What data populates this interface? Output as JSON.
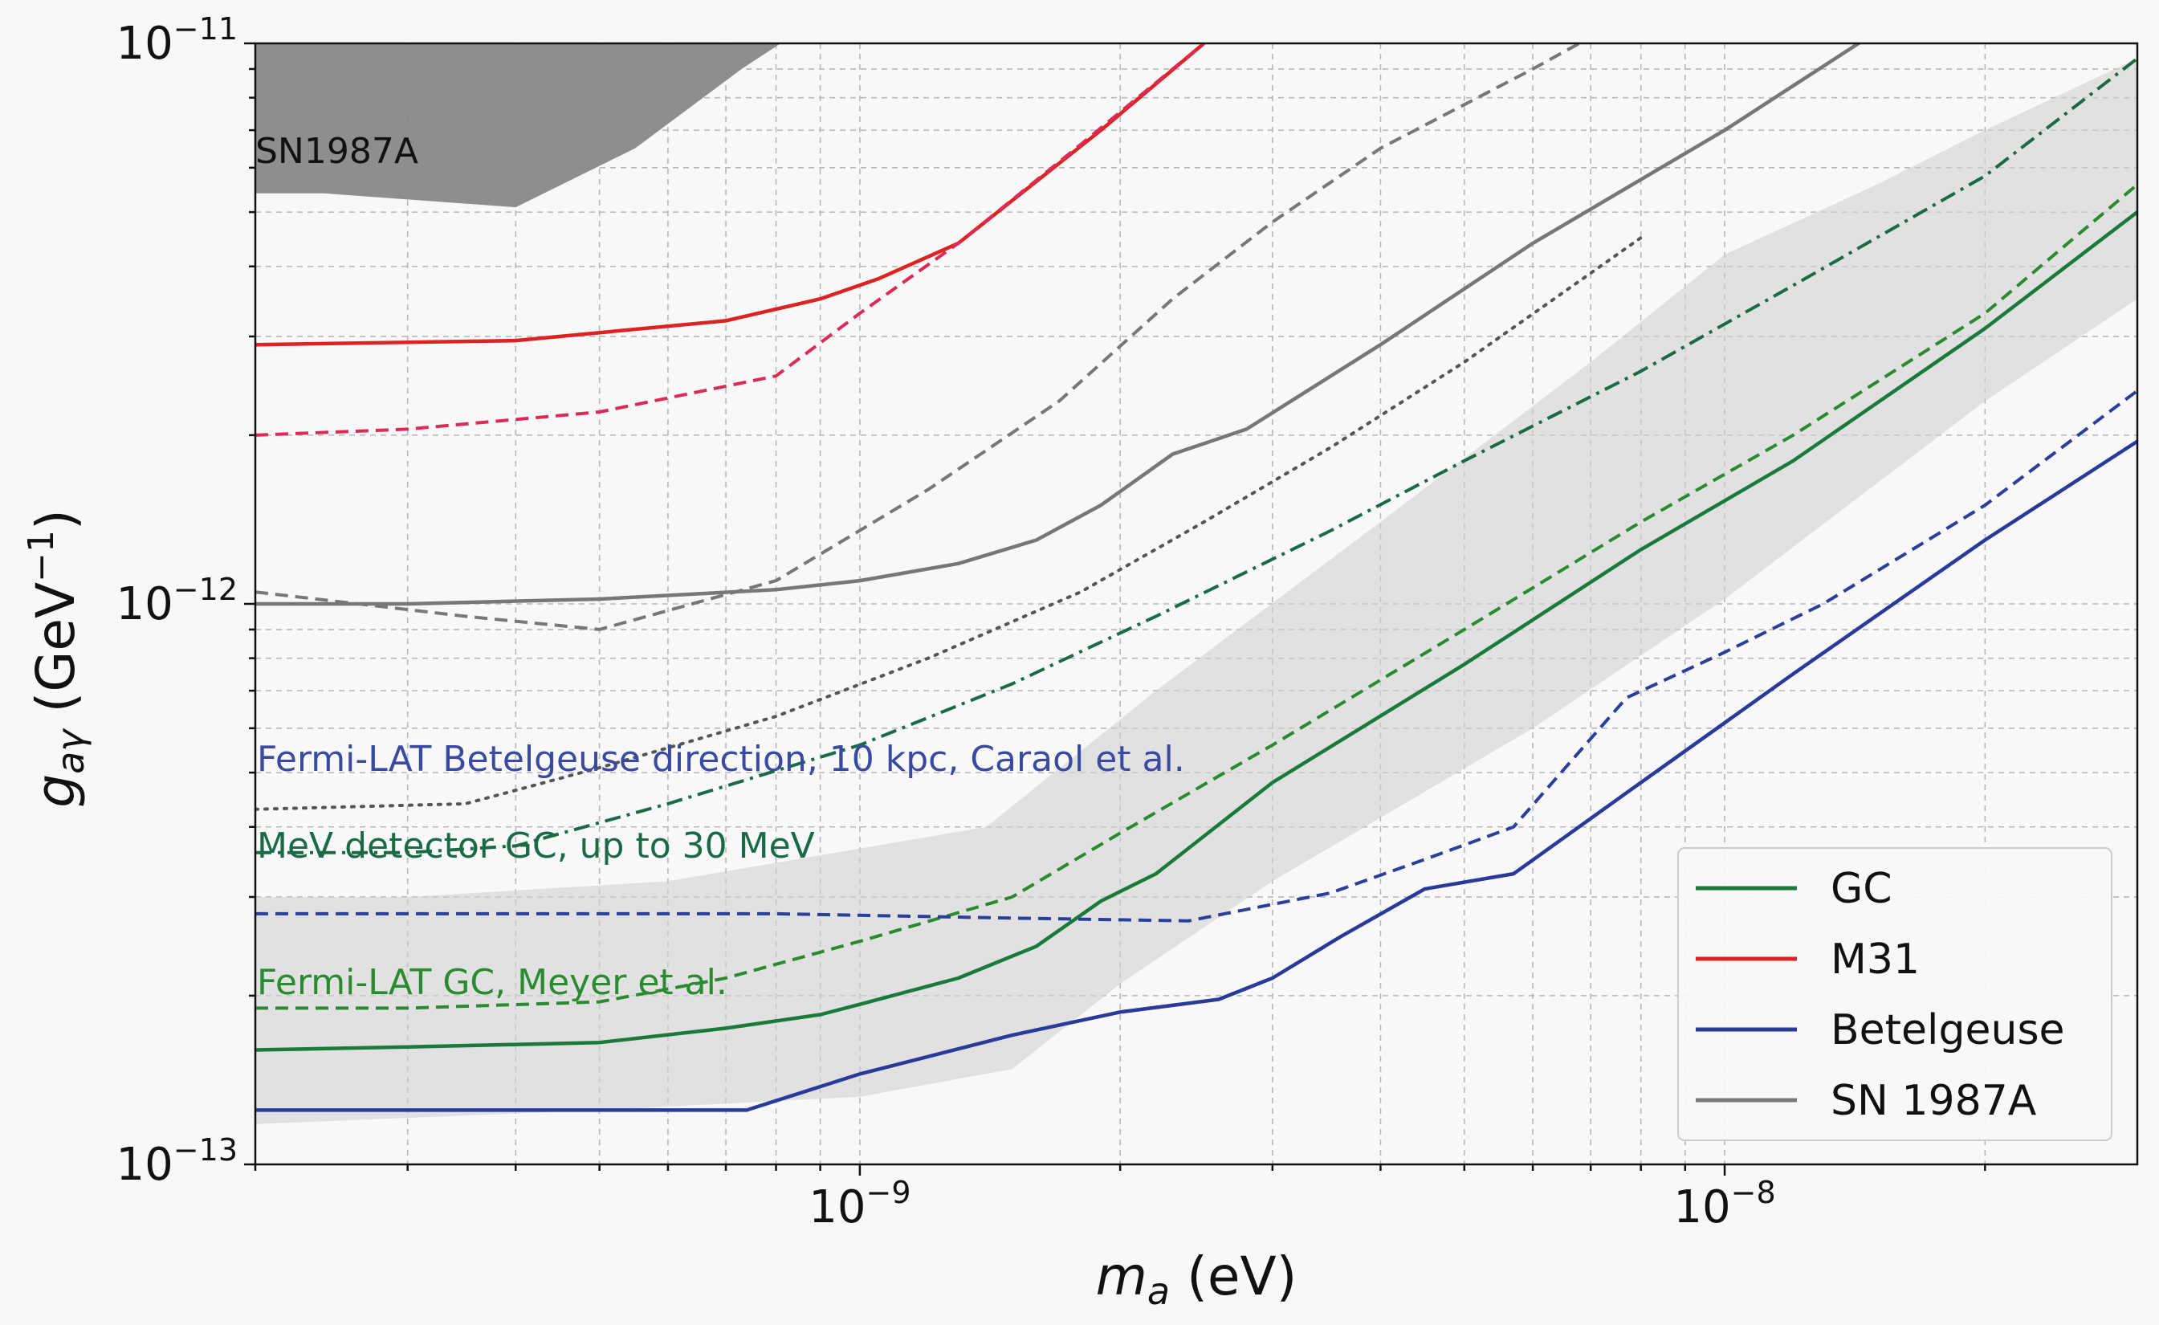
{
  "chart_data": {
    "type": "line",
    "x_scale": "log",
    "y_scale": "log",
    "xlim": [
      2e-10,
      3e-08
    ],
    "ylim": [
      1e-13,
      1e-11
    ],
    "xlabel_sym": "m",
    "xlabel_sub": "a",
    "xlabel_rest": " (eV)",
    "ylabel_sym": "g",
    "ylabel_sub": "aγ",
    "ylabel_rest": " (GeV",
    "ylabel_exp": "−1",
    "ylabel_close": ")",
    "x_ticks": [
      {
        "value": 1e-09,
        "base": "10",
        "exp": "−9"
      },
      {
        "value": 1e-08,
        "base": "10",
        "exp": "−8"
      }
    ],
    "y_ticks": [
      {
        "value": 1e-11,
        "base": "10",
        "exp": "−11"
      },
      {
        "value": 1e-12,
        "base": "10",
        "exp": "−12"
      },
      {
        "value": 1e-13,
        "base": "10",
        "exp": "−13"
      }
    ],
    "grid": true,
    "legend_position": "lower-right",
    "legend": [
      {
        "label": "GC",
        "color": "#1a7a3c"
      },
      {
        "label": "M31",
        "color": "#dd2222"
      },
      {
        "label": "Betelgeuse",
        "color": "#2b3a9a"
      },
      {
        "label": "SN 1987A",
        "color": "#777777"
      }
    ],
    "regions": [
      {
        "name": "SN1987A",
        "color": "#888888",
        "lower": [
          [
            2e-10,
            5.4e-12
          ],
          [
            2.4e-10,
            5.4e-12
          ],
          [
            4e-10,
            5.1e-12
          ],
          [
            5.5e-10,
            6.5e-12
          ],
          [
            7.3e-10,
            9e-12
          ],
          [
            8.5e-10,
            1.05e-11
          ]
        ]
      },
      {
        "name": "GC band",
        "color": "#d2d2d2",
        "upper": [
          [
            2e-10,
            3e-13
          ],
          [
            3e-10,
            3e-13
          ],
          [
            6e-10,
            3.2e-13
          ],
          [
            1.4e-09,
            4e-13
          ],
          [
            2.2e-09,
            7e-13
          ],
          [
            4e-09,
            1.4e-12
          ],
          [
            7e-09,
            2.7e-12
          ],
          [
            1e-08,
            4.2e-12
          ],
          [
            1.5e-08,
            5.6e-12
          ],
          [
            2e-08,
            7e-12
          ],
          [
            3e-08,
            9.4e-12
          ]
        ],
        "lower": [
          [
            3e-08,
            3.5e-12
          ],
          [
            2e-08,
            2.3e-12
          ],
          [
            1e-08,
            1.02e-12
          ],
          [
            6e-09,
            6e-13
          ],
          [
            3e-09,
            3.2e-13
          ],
          [
            2e-09,
            2.1e-13
          ],
          [
            1.5e-09,
            1.48e-13
          ],
          [
            1e-09,
            1.32e-13
          ],
          [
            5e-10,
            1.25e-13
          ],
          [
            2e-10,
            1.18e-13
          ]
        ]
      }
    ],
    "series": [
      {
        "source": "M31",
        "style": "solid",
        "color": "#dd2222",
        "x": [
          2e-10,
          4e-10,
          7e-10,
          9e-10,
          1.05e-09,
          1.3e-09,
          1.9e-09,
          2.5e-09
        ],
        "y": [
          2.9e-12,
          2.95e-12,
          3.2e-12,
          3.5e-12,
          3.8e-12,
          4.4e-12,
          7e-12,
          1e-11
        ]
      },
      {
        "source": "M31",
        "style": "dashed",
        "color": "#dd2a55",
        "x": [
          2e-10,
          3e-10,
          5e-10,
          8e-10,
          1e-09,
          1.3e-09,
          1.8e-09,
          2.5e-09
        ],
        "y": [
          2e-12,
          2.05e-12,
          2.2e-12,
          2.55e-12,
          3.3e-12,
          4.4e-12,
          6.6e-12,
          1e-11
        ]
      },
      {
        "source": "SN 1987A",
        "style": "dashed",
        "color": "#777777",
        "x": [
          2e-10,
          3.5e-10,
          5e-10,
          8e-10,
          1.2e-09,
          1.7e-09,
          2.3e-09,
          3e-09,
          4e-09,
          6e-09,
          8e-09
        ],
        "y": [
          1.05e-12,
          9.5e-13,
          9e-13,
          1.1e-12,
          1.6e-12,
          2.3e-12,
          3.5e-12,
          4.8e-12,
          6.5e-12,
          9e-12,
          1.15e-11
        ]
      },
      {
        "source": "SN 1987A",
        "style": "solid",
        "color": "#777777",
        "x": [
          2e-10,
          3e-10,
          5e-10,
          8e-10,
          1e-09,
          1.3e-09,
          1.6e-09,
          1.9e-09,
          2.3e-09,
          2.8e-09,
          4e-09,
          6e-09,
          1e-08,
          1.5e-08
        ],
        "y": [
          1e-12,
          1e-12,
          1.02e-12,
          1.06e-12,
          1.1e-12,
          1.18e-12,
          1.3e-12,
          1.5e-12,
          1.85e-12,
          2.05e-12,
          2.9e-12,
          4.4e-12,
          7e-12,
          1.05e-11
        ]
      },
      {
        "source": "Betelgeuse",
        "style": "dotted",
        "color": "#555555",
        "x": [
          2e-10,
          3.5e-10,
          5e-10,
          8e-10,
          1.2e-09,
          1.8e-09,
          2.5e-09,
          3.5e-09,
          5e-09,
          8e-09
        ],
        "y": [
          4.3e-13,
          4.4e-13,
          5.1e-13,
          6.3e-13,
          8e-13,
          1.05e-12,
          1.4e-12,
          1.9e-12,
          2.7e-12,
          4.5e-12
        ]
      },
      {
        "source": "GC",
        "style": "dashdot",
        "color": "#1a6a45",
        "x": [
          2e-10,
          3e-10,
          4e-10,
          6e-10,
          1e-09,
          1.5e-09,
          2.2e-09,
          3.5e-09,
          5e-09,
          8e-09,
          1.2e-08,
          2e-08,
          3e-08
        ],
        "y": [
          3.6e-13,
          3.6e-13,
          3.7e-13,
          4.4e-13,
          5.6e-13,
          7.2e-13,
          9.5e-13,
          1.35e-12,
          1.8e-12,
          2.6e-12,
          3.7e-12,
          5.8e-12,
          9.4e-12
        ]
      },
      {
        "source": "GC",
        "style": "dashed",
        "color": "#2a8a30",
        "x": [
          2e-10,
          3e-10,
          5e-10,
          7e-10,
          1e-09,
          1.5e-09,
          2e-09,
          3e-09,
          5e-09,
          8e-09,
          1.2e-08,
          2e-08,
          3e-08
        ],
        "y": [
          1.9e-13,
          1.9e-13,
          1.95e-13,
          2.15e-13,
          2.5e-13,
          3e-13,
          3.9e-13,
          5.6e-13,
          9e-13,
          1.4e-12,
          2e-12,
          3.3e-12,
          5.6e-12
        ]
      },
      {
        "source": "GC",
        "style": "solid",
        "color": "#1a7a3c",
        "x": [
          2e-10,
          3e-10,
          5e-10,
          7e-10,
          9e-10,
          1e-09,
          1.3e-09,
          1.6e-09,
          1.9e-09,
          2.2e-09,
          3e-09,
          5e-09,
          8e-09,
          1.2e-08,
          2e-08,
          3e-08
        ],
        "y": [
          1.6e-13,
          1.62e-13,
          1.65e-13,
          1.75e-13,
          1.85e-13,
          1.93e-13,
          2.15e-13,
          2.45e-13,
          2.95e-13,
          3.3e-13,
          4.8e-13,
          7.8e-13,
          1.25e-12,
          1.8e-12,
          3.1e-12,
          5e-12
        ]
      },
      {
        "source": "Betelgeuse",
        "style": "dashed",
        "color": "#2a3e9a",
        "x": [
          2e-10,
          5e-10,
          8e-10,
          1.5e-09,
          2.4e-09,
          3.5e-09,
          4.5e-09,
          5.7e-09,
          7.7e-09,
          1e-08,
          1.3e-08,
          2e-08,
          3e-08
        ],
        "y": [
          2.8e-13,
          2.8e-13,
          2.8e-13,
          2.75e-13,
          2.72e-13,
          3.05e-13,
          3.5e-13,
          4e-13,
          6.8e-13,
          8.2e-13,
          1e-12,
          1.5e-12,
          2.4e-12
        ]
      },
      {
        "source": "Betelgeuse",
        "style": "solid",
        "color": "#2a3a9a",
        "x": [
          2e-10,
          4e-10,
          7.4e-10,
          1e-09,
          1.5e-09,
          2e-09,
          2.6e-09,
          3e-09,
          3.6e-09,
          4.5e-09,
          5.7e-09,
          8e-09,
          1.2e-08,
          2e-08,
          3e-08
        ],
        "y": [
          1.25e-13,
          1.25e-13,
          1.25e-13,
          1.45e-13,
          1.7e-13,
          1.87e-13,
          1.97e-13,
          2.15e-13,
          2.55e-13,
          3.1e-13,
          3.3e-13,
          4.8e-13,
          7.5e-13,
          1.3e-12,
          1.95e-12
        ]
      }
    ],
    "annotations": [
      {
        "text": "SN1987A",
        "color": "#111111"
      },
      {
        "text": "Fermi-LAT Betelgeuse direction, 10 kpc, Caraol et al.",
        "color": "#3a4aa0"
      },
      {
        "text": "MeV detector GC, up to 30 MeV",
        "color": "#1a6a45"
      },
      {
        "text": "Fermi-LAT GC, Meyer et al.",
        "color": "#2a8a30"
      }
    ]
  }
}
